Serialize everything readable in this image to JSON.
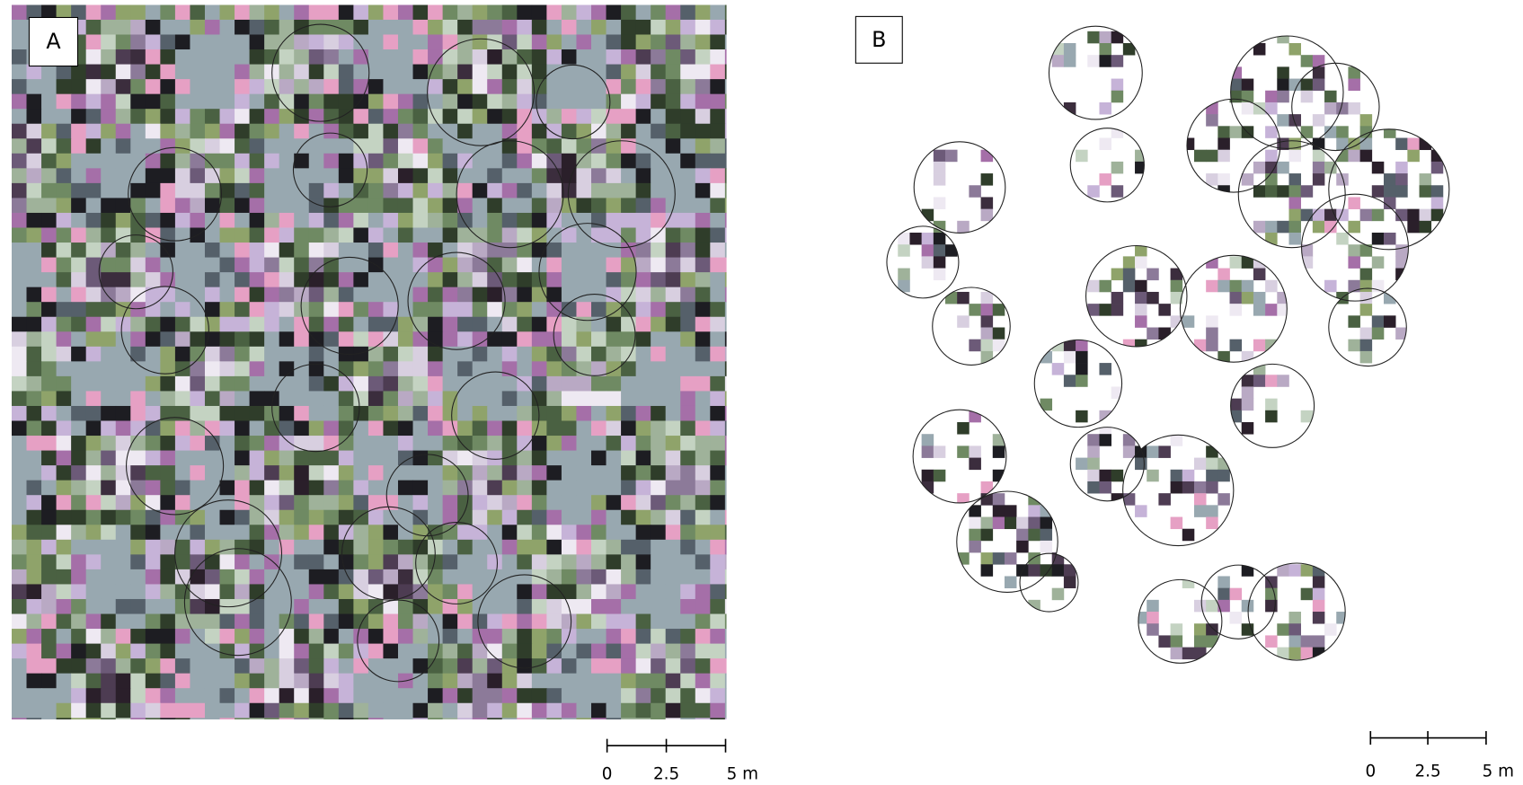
{
  "panels": [
    {
      "label": "A",
      "scale_bar": [
        "0",
        "2.5",
        "5 m"
      ]
    },
    {
      "label": "B",
      "scale_bar": [
        "0",
        "2.5",
        "5 m"
      ]
    }
  ]
}
